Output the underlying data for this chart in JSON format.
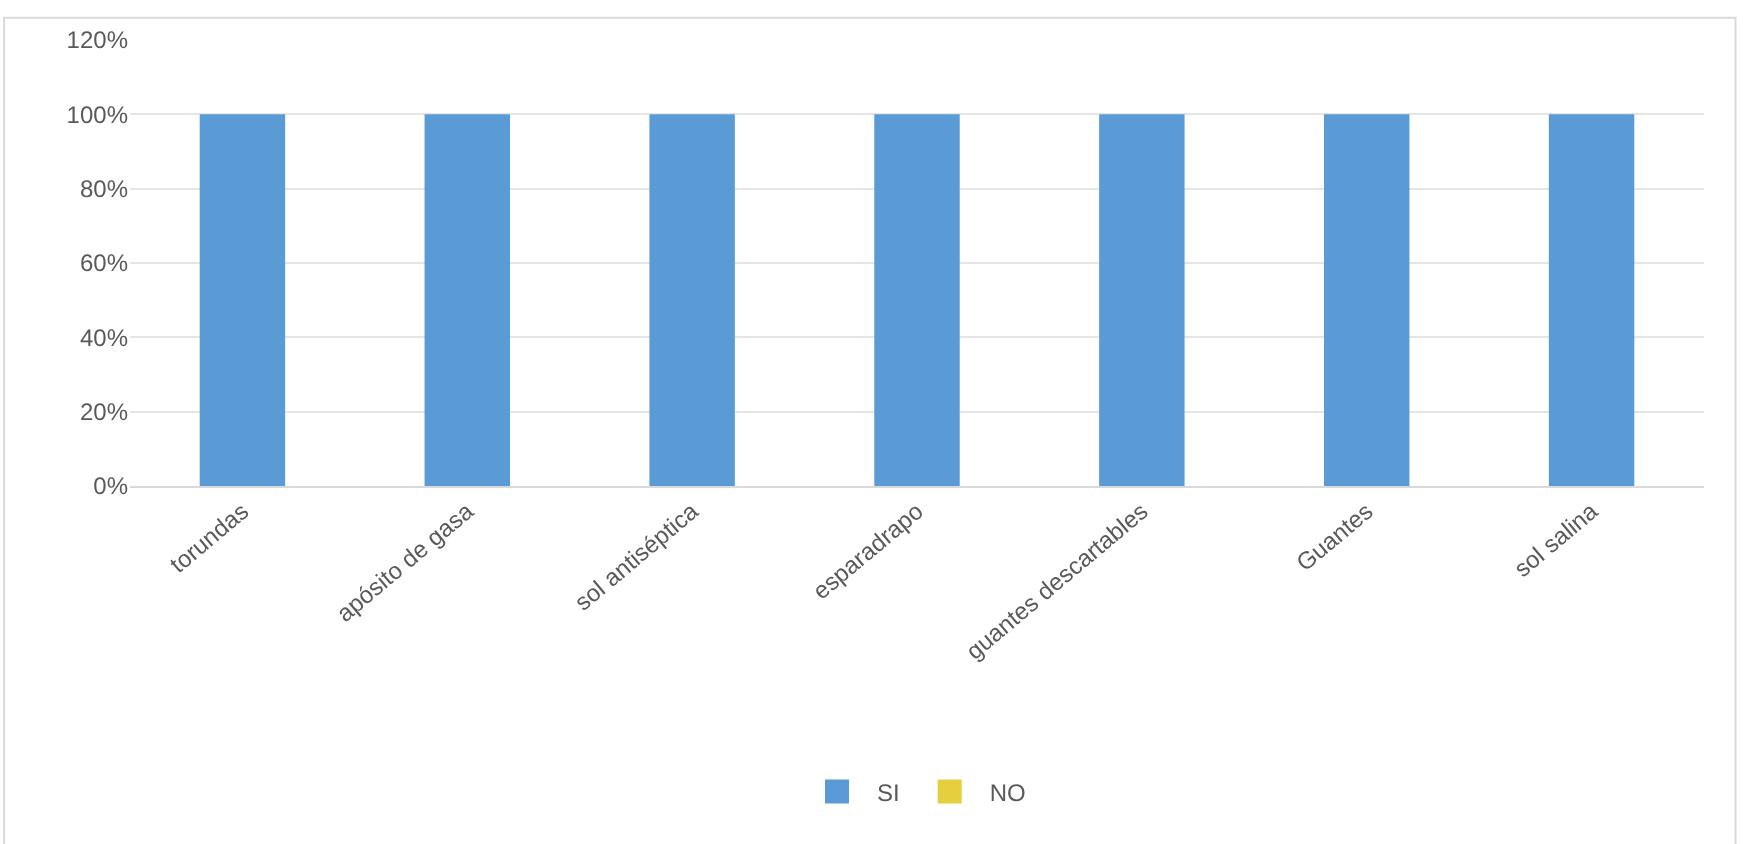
{
  "chart_data": {
    "type": "bar",
    "categories": [
      "torundas",
      "apósito de gasa",
      "sol antiséptica",
      "esparadrapo",
      "guantes descartables",
      "Guantes",
      "sol salina"
    ],
    "series": [
      {
        "name": "SI",
        "color": "#5b9bd5",
        "values": [
          100,
          100,
          100,
          100,
          100,
          100,
          100
        ]
      },
      {
        "name": "NO",
        "color": "#e6cf3c",
        "values": [
          0,
          0,
          0,
          0,
          0,
          0,
          0
        ]
      }
    ],
    "ylim": [
      0,
      120
    ],
    "yticks": [
      {
        "value": 0,
        "label": "0%"
      },
      {
        "value": 20,
        "label": "20%"
      },
      {
        "value": 40,
        "label": "40%"
      },
      {
        "value": 60,
        "label": "60%"
      },
      {
        "value": 80,
        "label": "80%"
      },
      {
        "value": 100,
        "label": "100%"
      },
      {
        "value": 120,
        "label": "120%"
      }
    ],
    "grid": "y",
    "legend": "bottom"
  }
}
